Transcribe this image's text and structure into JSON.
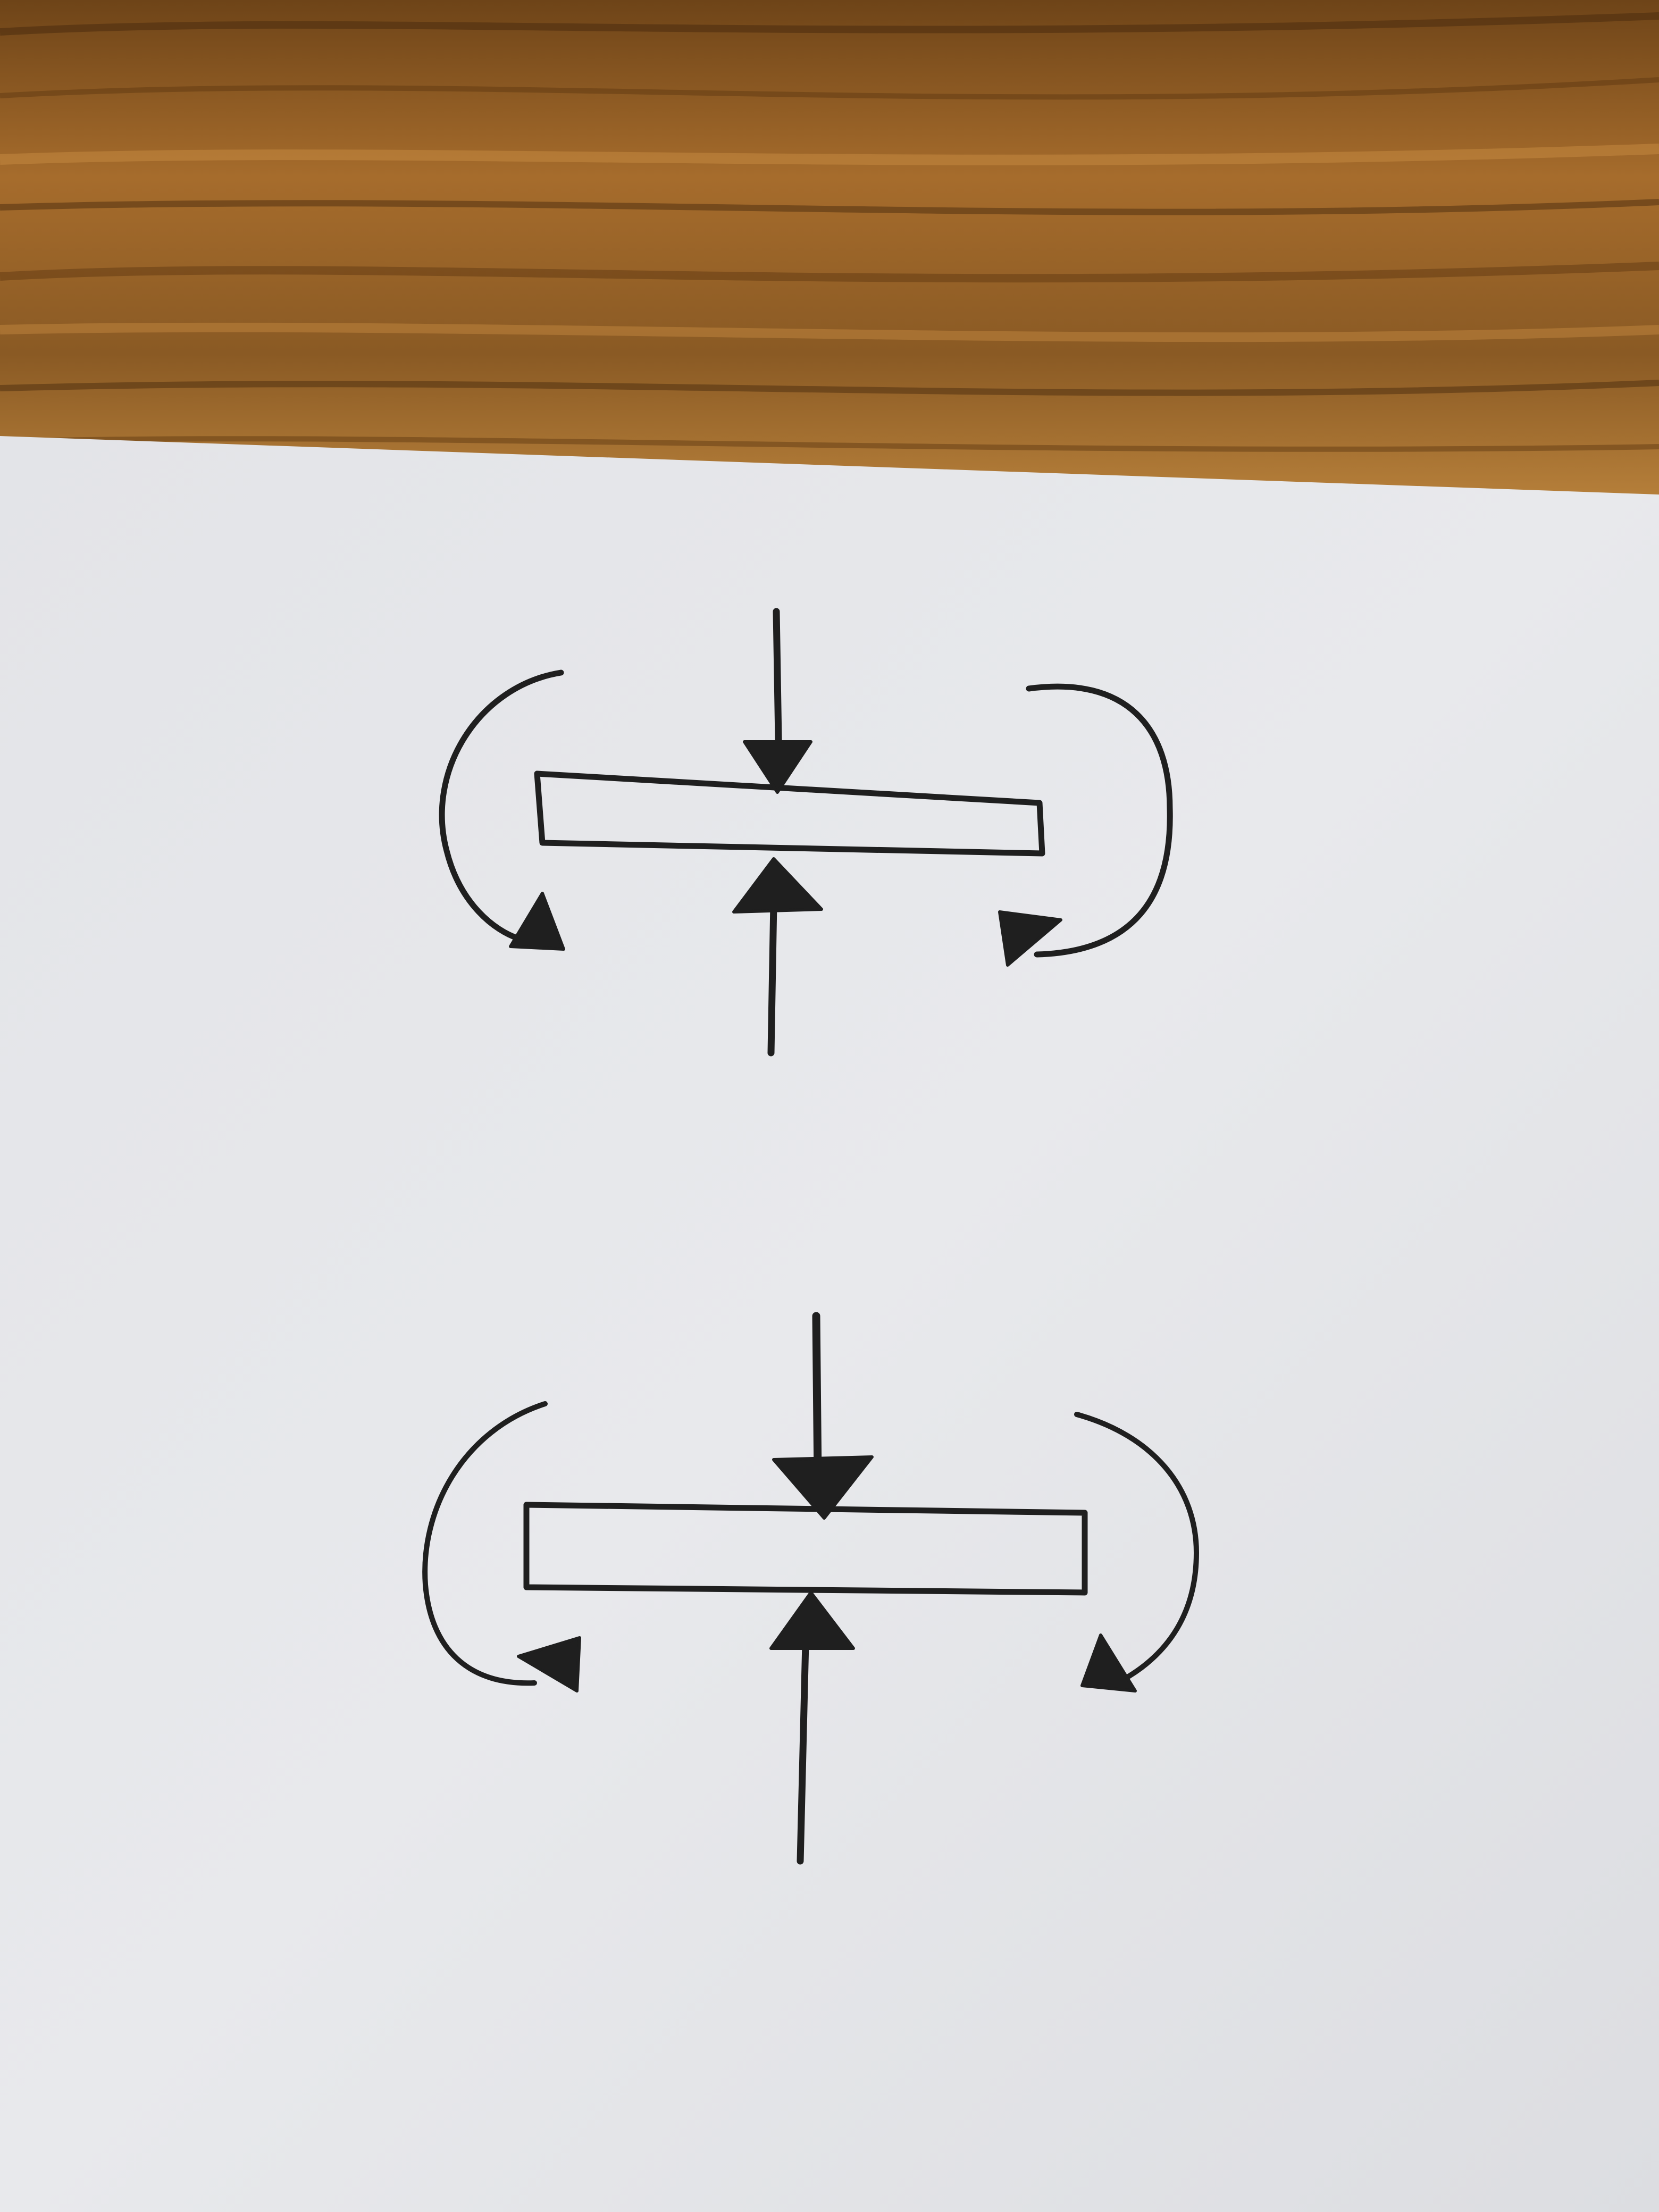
{
  "colors": {
    "wood_base": "#8a5a24",
    "wood_light": "#b57a35",
    "wood_dark": "#4a2c0e",
    "paper": "#e6e7ea",
    "paper_shade": "#d7d8dc",
    "ink": "#1f1f1f"
  },
  "diagrams": [
    {
      "name": "beam-diagram-top",
      "axial_arrows": [
        "down",
        "up"
      ],
      "moment_arrows": [
        "counterclockwise-left",
        "clockwise-right"
      ]
    },
    {
      "name": "beam-diagram-bottom",
      "axial_arrows": [
        "down",
        "up"
      ],
      "moment_arrows": [
        "counterclockwise-left",
        "clockwise-right"
      ]
    }
  ]
}
